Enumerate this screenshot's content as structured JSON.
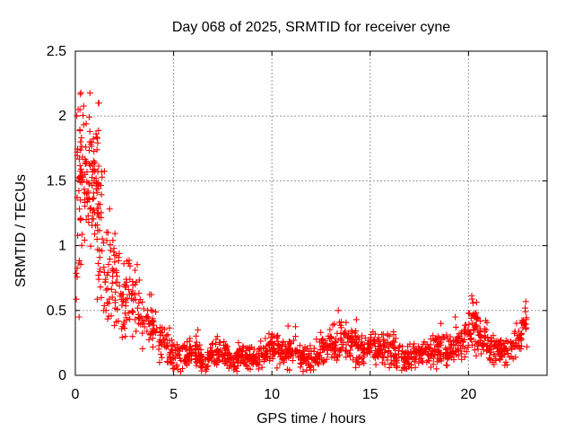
{
  "chart_data": {
    "type": "scatter",
    "title": "Day 068 of 2025, SRMTID for receiver cyne",
    "xlabel": "GPS time / hours",
    "ylabel": "SRMTID / TECUs",
    "series_name": "SRMTID",
    "marker": "plus",
    "marker_color": "#ff0000",
    "grid": true,
    "grid_color": "#9a9a9a",
    "axis_color": "#000000",
    "background": "#ffffff",
    "legend_position": "none",
    "xlim": [
      0,
      24
    ],
    "ylim": [
      0,
      2.5
    ],
    "xtick_values": [
      0,
      5,
      10,
      15,
      20
    ],
    "xtick_labels": [
      "0",
      "5",
      "10",
      "15",
      "20"
    ],
    "ytick_values": [
      0,
      0.5,
      1,
      1.5,
      2,
      2.5
    ],
    "ytick_labels": [
      "0",
      "0.5",
      "1",
      "1.5",
      "2",
      "2.5"
    ],
    "seed": 20250308,
    "point_bins_format": [
      "hour_start",
      "hour_end",
      "n_points",
      "center_y_start",
      "center_y_end",
      "spread",
      "y_min",
      "y_max"
    ],
    "point_bins": [
      [
        0.0,
        0.3,
        28,
        1.2,
        1.4,
        0.45,
        0.45,
        2.05
      ],
      [
        0.2,
        0.45,
        25,
        1.55,
        1.65,
        0.35,
        0.8,
        2.2
      ],
      [
        0.45,
        0.8,
        40,
        1.6,
        1.55,
        0.3,
        0.9,
        2.2
      ],
      [
        0.8,
        1.2,
        45,
        1.5,
        1.4,
        0.28,
        0.9,
        2.1
      ],
      [
        1.1,
        1.5,
        40,
        1.2,
        1.0,
        0.35,
        0.5,
        1.8
      ],
      [
        1.5,
        2.1,
        42,
        0.85,
        0.7,
        0.22,
        0.35,
        1.3
      ],
      [
        2.0,
        2.6,
        36,
        0.62,
        0.58,
        0.18,
        0.1,
        1.0
      ],
      [
        2.5,
        3.3,
        40,
        0.68,
        0.6,
        0.17,
        0.3,
        0.95
      ],
      [
        3.2,
        4.0,
        40,
        0.45,
        0.38,
        0.13,
        0.2,
        0.9
      ],
      [
        4.0,
        4.8,
        40,
        0.3,
        0.22,
        0.09,
        0.1,
        0.5
      ],
      [
        4.8,
        5.3,
        33,
        0.17,
        0.16,
        0.07,
        0.04,
        0.33
      ],
      [
        5.3,
        5.8,
        33,
        0.15,
        0.14,
        0.06,
        0.03,
        0.3
      ],
      [
        5.8,
        6.3,
        33,
        0.19,
        0.18,
        0.07,
        0.04,
        0.35
      ],
      [
        6.3,
        6.8,
        33,
        0.13,
        0.12,
        0.06,
        0.03,
        0.28
      ],
      [
        6.8,
        7.3,
        33,
        0.16,
        0.17,
        0.06,
        0.03,
        0.3
      ],
      [
        7.3,
        7.8,
        33,
        0.19,
        0.16,
        0.07,
        0.04,
        0.33
      ],
      [
        7.8,
        8.3,
        33,
        0.12,
        0.12,
        0.05,
        0.03,
        0.26
      ],
      [
        8.3,
        8.8,
        33,
        0.15,
        0.14,
        0.06,
        0.03,
        0.3
      ],
      [
        8.8,
        9.3,
        33,
        0.13,
        0.14,
        0.06,
        0.03,
        0.28
      ],
      [
        9.3,
        9.8,
        33,
        0.16,
        0.18,
        0.06,
        0.04,
        0.3
      ],
      [
        9.8,
        10.3,
        33,
        0.22,
        0.2,
        0.07,
        0.05,
        0.4
      ],
      [
        10.3,
        10.8,
        33,
        0.17,
        0.16,
        0.06,
        0.04,
        0.33
      ],
      [
        10.8,
        11.3,
        33,
        0.2,
        0.18,
        0.07,
        0.04,
        0.38
      ],
      [
        11.3,
        11.8,
        33,
        0.15,
        0.13,
        0.06,
        0.03,
        0.3
      ],
      [
        11.8,
        12.3,
        33,
        0.13,
        0.15,
        0.06,
        0.03,
        0.3
      ],
      [
        12.3,
        12.8,
        33,
        0.19,
        0.22,
        0.07,
        0.05,
        0.38
      ],
      [
        12.8,
        13.3,
        33,
        0.24,
        0.26,
        0.08,
        0.06,
        0.45
      ],
      [
        13.3,
        13.8,
        33,
        0.27,
        0.27,
        0.09,
        0.07,
        0.5
      ],
      [
        13.8,
        14.3,
        33,
        0.25,
        0.22,
        0.08,
        0.06,
        0.48
      ],
      [
        14.3,
        14.8,
        33,
        0.2,
        0.19,
        0.07,
        0.05,
        0.38
      ],
      [
        14.8,
        15.3,
        33,
        0.21,
        0.2,
        0.07,
        0.05,
        0.4
      ],
      [
        15.3,
        15.8,
        33,
        0.2,
        0.21,
        0.07,
        0.05,
        0.42
      ],
      [
        15.8,
        16.3,
        33,
        0.22,
        0.2,
        0.08,
        0.05,
        0.45
      ],
      [
        16.3,
        16.8,
        33,
        0.15,
        0.13,
        0.06,
        0.03,
        0.3
      ],
      [
        16.8,
        17.3,
        33,
        0.13,
        0.14,
        0.06,
        0.03,
        0.28
      ],
      [
        17.3,
        17.8,
        33,
        0.17,
        0.18,
        0.06,
        0.04,
        0.32
      ],
      [
        17.8,
        18.3,
        33,
        0.19,
        0.2,
        0.07,
        0.04,
        0.36
      ],
      [
        18.3,
        18.8,
        33,
        0.21,
        0.2,
        0.07,
        0.05,
        0.4
      ],
      [
        18.8,
        19.3,
        33,
        0.19,
        0.2,
        0.07,
        0.05,
        0.36
      ],
      [
        19.3,
        19.8,
        33,
        0.23,
        0.27,
        0.08,
        0.06,
        0.45
      ],
      [
        19.8,
        20.15,
        25,
        0.3,
        0.35,
        0.09,
        0.1,
        0.5
      ],
      [
        20.15,
        20.5,
        30,
        0.42,
        0.38,
        0.13,
        0.15,
        0.72
      ],
      [
        20.5,
        21.0,
        35,
        0.3,
        0.26,
        0.09,
        0.1,
        0.5
      ],
      [
        21.0,
        21.6,
        40,
        0.22,
        0.2,
        0.07,
        0.08,
        0.38
      ],
      [
        21.6,
        22.3,
        45,
        0.19,
        0.2,
        0.07,
        0.05,
        0.35
      ],
      [
        22.3,
        22.7,
        28,
        0.24,
        0.3,
        0.08,
        0.1,
        0.45
      ],
      [
        22.7,
        23.0,
        18,
        0.38,
        0.46,
        0.08,
        0.22,
        0.57
      ]
    ]
  }
}
